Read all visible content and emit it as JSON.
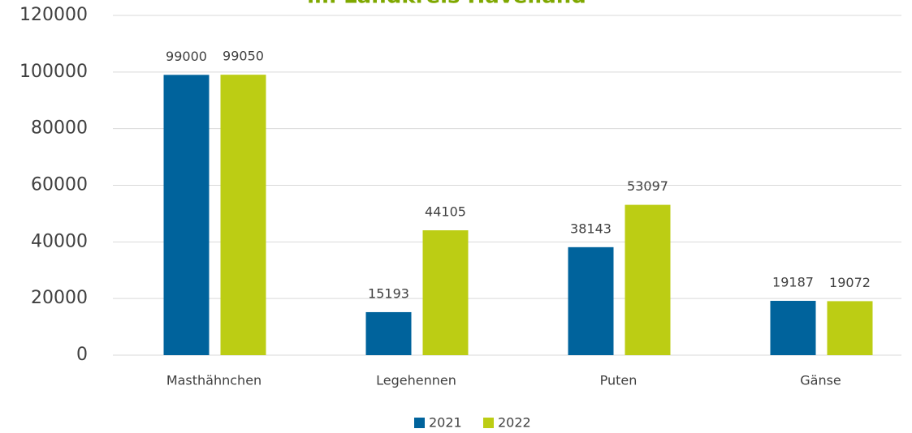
{
  "chart_data": {
    "type": "bar",
    "title": "im Landkreis Havelland",
    "categories": [
      "Masthähnchen",
      "Legehennen",
      "Puten",
      "Gänse"
    ],
    "series": [
      {
        "name": "2021",
        "color": "#00639c",
        "values": [
          99000,
          15193,
          38143,
          19187
        ]
      },
      {
        "name": "2022",
        "color": "#bccd14",
        "values": [
          99050,
          44105,
          53097,
          19072
        ]
      }
    ],
    "ylim": [
      0,
      120000
    ],
    "yticks": [
      0,
      20000,
      40000,
      60000,
      80000,
      100000,
      120000
    ],
    "grid": true,
    "legend": "bottom"
  }
}
